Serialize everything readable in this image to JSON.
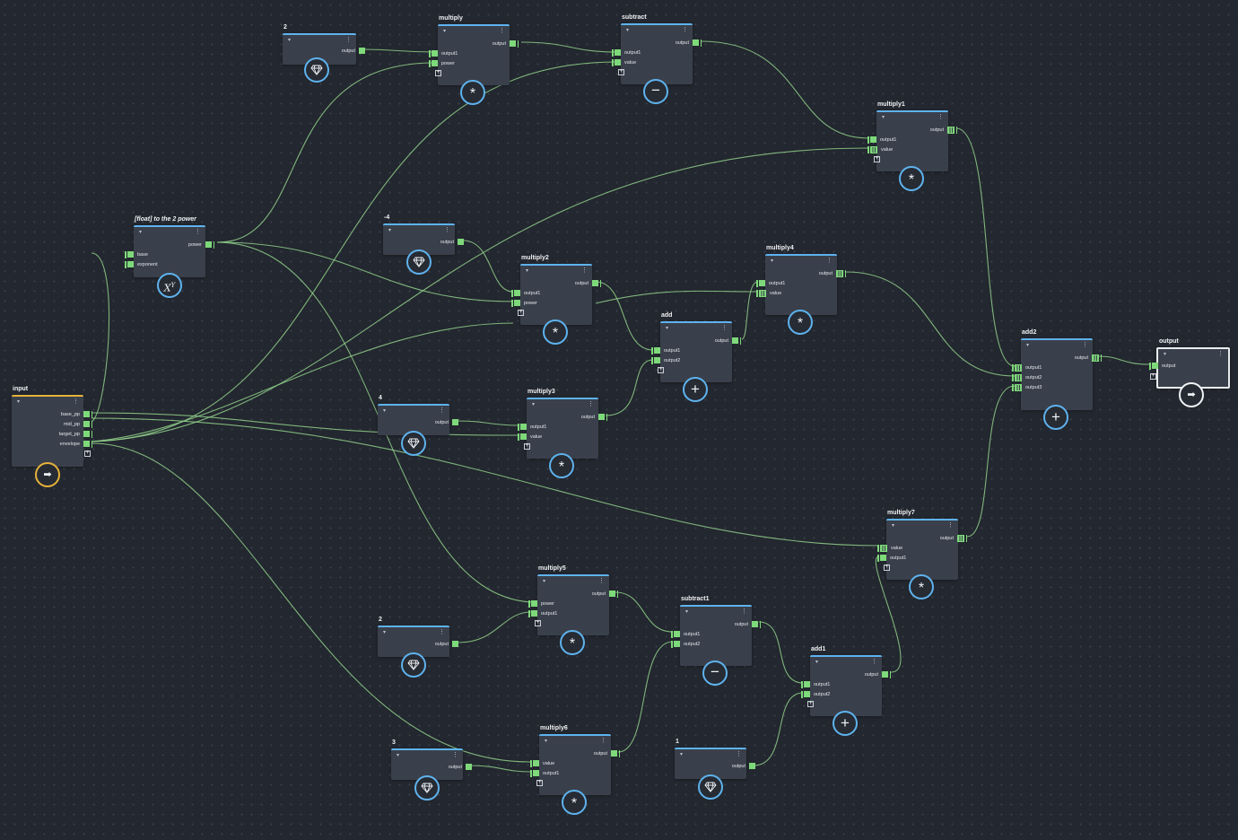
{
  "colors": {
    "background": "#23272f",
    "node_body": "#3a404b",
    "node_border_accent": "#5eb3ee",
    "input_accent": "#e6b23a",
    "output_accent": "#e9ecef",
    "wire": "#8fcf8a",
    "port": "#7ed97a"
  },
  "glyphs": {
    "menu": "⋮",
    "arrow": "▾",
    "add": "+",
    "star": "*",
    "minus": "−",
    "plus": "+",
    "arrow_right": "➡"
  },
  "nodes": {
    "const_2a": {
      "title": "2",
      "outputs": [
        "output"
      ],
      "icon": "gem-icon"
    },
    "multiply": {
      "title": "multiply",
      "inputs": [
        "output1",
        "power"
      ],
      "outputs": [
        "output"
      ],
      "icon": "multiply-icon"
    },
    "subtract": {
      "title": "subtract",
      "inputs": [
        "output1",
        "value"
      ],
      "outputs": [
        "output"
      ],
      "icon": "minus-icon"
    },
    "multiply1": {
      "title": "multiply1",
      "inputs": [
        "output1",
        "value"
      ],
      "outputs": [
        "output"
      ],
      "icon": "multiply-icon"
    },
    "pow_node": {
      "title": "[float] to the 2 power",
      "inputs": [
        "base",
        "exponent"
      ],
      "outputs": [
        "power"
      ],
      "icon": "power-icon",
      "icon_base": "X",
      "icon_exp": "Y"
    },
    "const_neg4": {
      "title": "-4",
      "outputs": [
        "output"
      ],
      "icon": "gem-icon"
    },
    "multiply2": {
      "title": "multiply2",
      "inputs": [
        "output1",
        "power"
      ],
      "outputs": [
        "output"
      ],
      "icon": "multiply-icon"
    },
    "multiply4": {
      "title": "multiply4",
      "inputs": [
        "output1",
        "value"
      ],
      "outputs": [
        "output"
      ],
      "icon": "multiply-icon"
    },
    "add": {
      "title": "add",
      "inputs": [
        "output1",
        "output2"
      ],
      "outputs": [
        "output"
      ],
      "icon": "plus-icon"
    },
    "input": {
      "title": "input",
      "outputs": [
        "base_pp",
        "mid_pp",
        "target_pp",
        "envelope"
      ],
      "icon": "input-arrow-icon"
    },
    "const_4": {
      "title": "4",
      "outputs": [
        "output"
      ],
      "icon": "gem-icon"
    },
    "multiply3": {
      "title": "multiply3",
      "inputs": [
        "output1",
        "value"
      ],
      "outputs": [
        "output"
      ],
      "icon": "multiply-icon"
    },
    "add2": {
      "title": "add2",
      "inputs": [
        "output1",
        "output2",
        "output3"
      ],
      "outputs": [
        "output"
      ],
      "icon": "plus-icon"
    },
    "output": {
      "title": "output",
      "inputs": [
        "output"
      ],
      "icon": "output-arrow-icon"
    },
    "multiply7": {
      "title": "multiply7",
      "inputs": [
        "value",
        "output1"
      ],
      "outputs": [
        "output"
      ],
      "icon": "multiply-icon"
    },
    "multiply5": {
      "title": "multiply5",
      "inputs": [
        "power",
        "output1"
      ],
      "outputs": [
        "output"
      ],
      "icon": "multiply-icon"
    },
    "const_2b": {
      "title": "2",
      "outputs": [
        "output"
      ],
      "icon": "gem-icon"
    },
    "subtract1": {
      "title": "subtract1",
      "inputs": [
        "output1",
        "output2"
      ],
      "outputs": [
        "output"
      ],
      "icon": "minus-icon"
    },
    "add1": {
      "title": "add1",
      "inputs": [
        "output1",
        "output2"
      ],
      "outputs": [
        "output"
      ],
      "icon": "plus-icon"
    },
    "const_3": {
      "title": "3",
      "outputs": [
        "output"
      ],
      "icon": "gem-icon"
    },
    "multiply6": {
      "title": "multiply6",
      "inputs": [
        "value",
        "output1"
      ],
      "outputs": [
        "output"
      ],
      "icon": "multiply-icon"
    },
    "const_1": {
      "title": "1",
      "outputs": [
        "output"
      ],
      "icon": "gem-icon"
    }
  }
}
